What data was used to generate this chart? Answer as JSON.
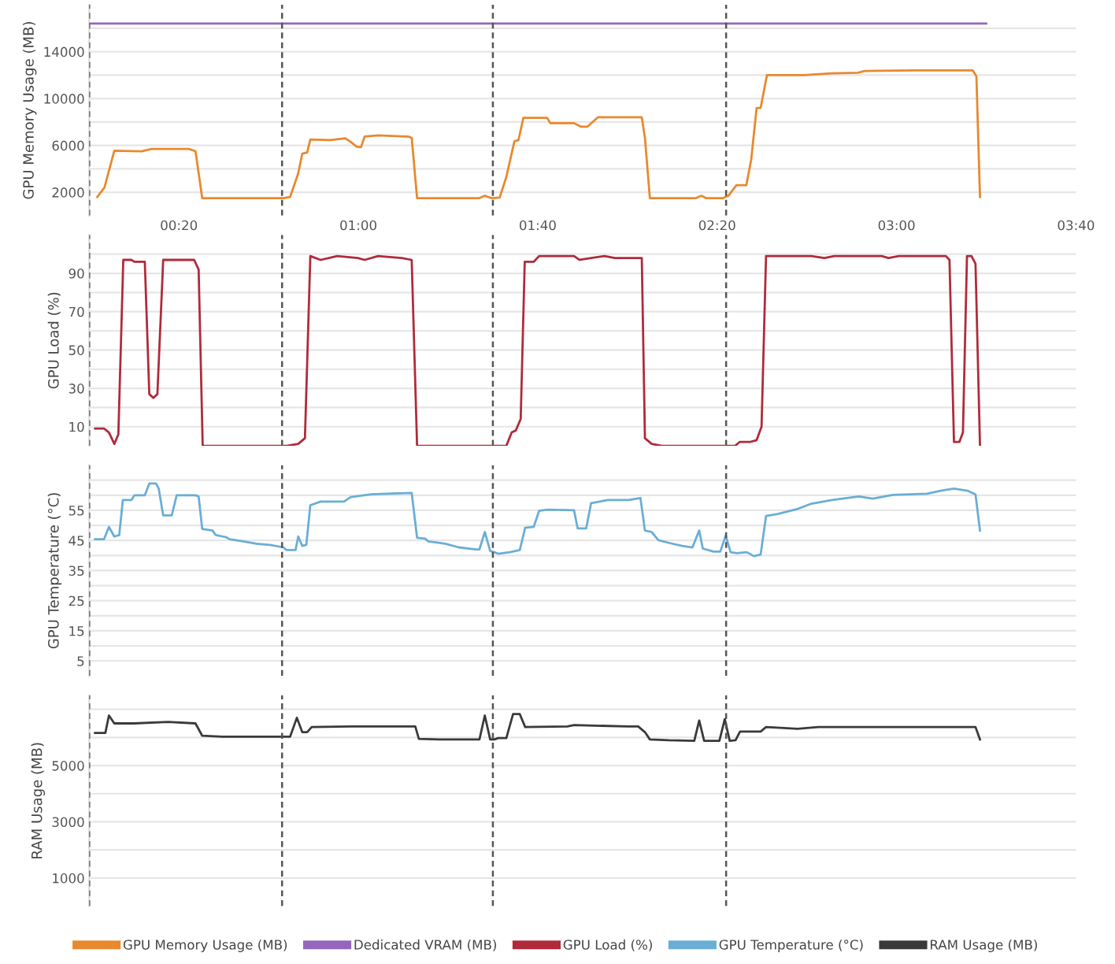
{
  "chart_data": [
    {
      "type": "line",
      "ylabel": "GPU Memory Usage (MB)",
      "xlim": [
        0,
        220
      ],
      "xticks": [
        {
          "value": 20,
          "label": "00:20"
        },
        {
          "value": 60,
          "label": "01:00"
        },
        {
          "value": 100,
          "label": "01:40"
        },
        {
          "value": 140,
          "label": "02:20"
        },
        {
          "value": 180,
          "label": "03:00"
        },
        {
          "value": 220,
          "label": "03:40"
        }
      ],
      "ylim": [
        0,
        18000
      ],
      "yticks": [
        {
          "value": 2000,
          "label": "2000"
        },
        {
          "value": 4000,
          "label": null
        },
        {
          "value": 6000,
          "label": "6000"
        },
        {
          "value": 8000,
          "label": null
        },
        {
          "value": 10000,
          "label": "10000"
        },
        {
          "value": 12000,
          "label": null
        },
        {
          "value": 14000,
          "label": "14000"
        },
        {
          "value": 16000,
          "label": null
        }
      ],
      "grid": "y",
      "legend": "bottom",
      "ref_lines": [
        {
          "axis": "x",
          "value": 0,
          "color": "#555555",
          "line_style": "dashed"
        },
        {
          "axis": "x",
          "value": 43,
          "color": "#555555",
          "line_style": "dashed"
        },
        {
          "axis": "x",
          "value": 90,
          "color": "#555555",
          "line_style": "dashed"
        },
        {
          "axis": "x",
          "value": 142,
          "color": "#555555",
          "line_style": "dashed"
        }
      ],
      "series": [
        {
          "name": "GPU Memory Usage (MB)",
          "color": "#e8892e",
          "x": [
            1.8,
            3.4,
            5.6,
            11.7,
            13.9,
            22.2,
            23.7,
            25.2,
            43.3,
            44.8,
            46.6,
            47.5,
            48.6,
            49.3,
            53.8,
            57.1,
            58.3,
            59.6,
            60.6,
            61.4,
            64.4,
            71.2,
            71.9,
            73.1,
            87,
            88.2,
            89.7,
            91.5,
            93,
            94.8,
            95.7,
            96.8,
            102.1,
            102.8,
            108.1,
            109.6,
            111.1,
            113.4,
            123.2,
            123.9,
            125,
            135.3,
            136.5,
            137.5,
            141.3,
            142.5,
            144.3,
            146.5,
            147.6,
            148.8,
            149.7,
            151.1,
            159.4,
            165.4,
            171.4,
            172.9,
            183.5,
            197,
            197.8,
            198.6
          ],
          "values": [
            1600,
            2400,
            5550,
            5500,
            5700,
            5700,
            5500,
            1500,
            1500,
            1600,
            3600,
            5300,
            5400,
            6500,
            6450,
            6600,
            6300,
            5900,
            5850,
            6750,
            6850,
            6750,
            6650,
            1500,
            1500,
            1700,
            1500,
            1550,
            3300,
            6350,
            6450,
            8350,
            8350,
            7900,
            7900,
            7600,
            7600,
            8400,
            8400,
            6650,
            1500,
            1500,
            1700,
            1500,
            1500,
            1700,
            2600,
            2600,
            4800,
            9200,
            9200,
            12000,
            12000,
            12150,
            12200,
            12350,
            12400,
            12400,
            11900,
            1600
          ]
        },
        {
          "name": "Dedicated VRAM (MB)",
          "color": "#9467bd",
          "x": [
            0,
            200
          ],
          "values": [
            16400,
            16400
          ]
        }
      ]
    },
    {
      "type": "line",
      "ylabel": "GPU Load (%)",
      "xlim": [
        0,
        220
      ],
      "ylim": [
        0,
        110
      ],
      "yticks": [
        {
          "value": 10,
          "label": "10"
        },
        {
          "value": 20,
          "label": null
        },
        {
          "value": 30,
          "label": "30"
        },
        {
          "value": 40,
          "label": null
        },
        {
          "value": 50,
          "label": "50"
        },
        {
          "value": 60,
          "label": null
        },
        {
          "value": 70,
          "label": "70"
        },
        {
          "value": 80,
          "label": null
        },
        {
          "value": 90,
          "label": "90"
        },
        {
          "value": 100,
          "label": null
        }
      ],
      "grid": "y",
      "tick_labels": "y",
      "legend": "bottom",
      "ref_lines": [
        {
          "axis": "x",
          "value": 0,
          "color": "#555555",
          "line_style": "dashed"
        },
        {
          "axis": "x",
          "value": 43,
          "color": "#555555",
          "line_style": "dashed"
        },
        {
          "axis": "x",
          "value": 90,
          "color": "#555555",
          "line_style": "dashed"
        },
        {
          "axis": "x",
          "value": 142,
          "color": "#555555",
          "line_style": "dashed"
        }
      ],
      "series": [
        {
          "name": "GPU Load (%)",
          "color": "#b02a3a",
          "x": [
            1.3,
            3.3,
            4.4,
            5.6,
            6.5,
            7.6,
            9.4,
            10.1,
            12.4,
            13.4,
            14.3,
            15.2,
            16.5,
            23.4,
            24.4,
            25.3,
            43.3,
            44,
            46.6,
            48.1,
            49.3,
            51.6,
            55.3,
            59.9,
            61.4,
            64.4,
            69.7,
            71.9,
            73.1,
            90,
            91.2,
            93,
            94.2,
            95.1,
            96.2,
            97.1,
            99.1,
            100.3,
            108.1,
            109.3,
            111.9,
            114.9,
            117.2,
            123.2,
            123.9,
            125.4,
            127.7,
            142.8,
            144,
            145,
            147.3,
            148.8,
            149.9,
            150.9,
            161,
            163.9,
            166.1,
            176.7,
            178.2,
            180.5,
            191,
            191.8,
            192.8,
            194,
            194.8,
            195.7,
            196.7,
            197.6,
            198.6
          ],
          "values": [
            9,
            9,
            7,
            1,
            6,
            97,
            97,
            96,
            96,
            27,
            25,
            27,
            97,
            97,
            92,
            0,
            0,
            0,
            1,
            4,
            99,
            97,
            99,
            98,
            97,
            99,
            98,
            97,
            0,
            0,
            0,
            0,
            7,
            8,
            14,
            96,
            96,
            99,
            99,
            97,
            98,
            99,
            98,
            98,
            4,
            1,
            0,
            0,
            0,
            2,
            2,
            3,
            10,
            99,
            99,
            98,
            99,
            99,
            98,
            99,
            99,
            97,
            2,
            2,
            7,
            99,
            99,
            95,
            0
          ]
        }
      ]
    },
    {
      "type": "line",
      "ylabel": "GPU Temperature (°C)",
      "xlim": [
        0,
        220
      ],
      "ylim": [
        0,
        70
      ],
      "yticks": [
        {
          "value": 5,
          "label": "5"
        },
        {
          "value": 10,
          "label": null
        },
        {
          "value": 15,
          "label": "15"
        },
        {
          "value": 20,
          "label": null
        },
        {
          "value": 25,
          "label": "25"
        },
        {
          "value": 30,
          "label": null
        },
        {
          "value": 35,
          "label": "35"
        },
        {
          "value": 40,
          "label": null
        },
        {
          "value": 45,
          "label": "45"
        },
        {
          "value": 50,
          "label": null
        },
        {
          "value": 55,
          "label": "55"
        },
        {
          "value": 60,
          "label": null
        },
        {
          "value": 65,
          "label": null
        }
      ],
      "grid": "y",
      "tick_labels": "y",
      "legend": "bottom",
      "ref_lines": [
        {
          "axis": "x",
          "value": 0,
          "color": "#555555",
          "line_style": "dashed"
        },
        {
          "axis": "x",
          "value": 43,
          "color": "#555555",
          "line_style": "dashed"
        },
        {
          "axis": "x",
          "value": 90,
          "color": "#555555",
          "line_style": "dashed"
        },
        {
          "axis": "x",
          "value": 142,
          "color": "#555555",
          "line_style": "dashed"
        }
      ],
      "series": [
        {
          "name": "GPU Temperature (°C)",
          "color": "#6aaed6",
          "x": [
            1.3,
            3.3,
            4.4,
            5.6,
            6.7,
            7.5,
            9.4,
            10.1,
            12.4,
            13.4,
            14.9,
            15.5,
            16.5,
            18.4,
            19.5,
            23.7,
            24.4,
            25.2,
            27.5,
            28.2,
            30.5,
            31.3,
            34.3,
            37.3,
            40.3,
            43.3,
            44,
            46,
            46.6,
            47.5,
            48.4,
            49.3,
            51.6,
            56.8,
            58.3,
            62.9,
            71.9,
            73.1,
            74.9,
            75.6,
            79.4,
            82.4,
            86.2,
            87,
            88.2,
            89.4,
            90.3,
            91.2,
            93.8,
            96,
            97.2,
            99.1,
            100.3,
            102.1,
            108.1,
            108.9,
            110.8,
            111.9,
            115.6,
            120.2,
            122.9,
            123.9,
            125.4,
            126.9,
            129.2,
            132.2,
            134.5,
            136,
            136.8,
            139.2,
            140.7,
            141.9,
            143,
            144.4,
            146.6,
            148.2,
            149.7,
            150.9,
            153.5,
            158,
            161,
            165.6,
            171.6,
            174.7,
            179.2,
            186.8,
            189.8,
            192.8,
            195.8,
            197.6,
            198.6
          ],
          "values": [
            45.4,
            45.4,
            49.5,
            46.3,
            46.8,
            58.4,
            58.4,
            60,
            60,
            63.9,
            63.9,
            62.2,
            53.3,
            53.3,
            60,
            60,
            59.6,
            48.8,
            48.3,
            46.8,
            46.1,
            45.4,
            44.7,
            43.9,
            43.5,
            42.7,
            41.8,
            41.8,
            46.3,
            43.2,
            43.5,
            56.7,
            57.9,
            57.9,
            59.4,
            60.3,
            60.8,
            45.9,
            45.6,
            44.7,
            43.9,
            42.7,
            42,
            42,
            47.8,
            41.5,
            41.1,
            40.6,
            41.1,
            41.8,
            49.2,
            49.5,
            54.8,
            55.2,
            55,
            49,
            49,
            57.4,
            58.4,
            58.4,
            59.1,
            48.3,
            47.8,
            45.1,
            44.2,
            43.2,
            42.7,
            48.3,
            42.3,
            41.3,
            41.3,
            46.6,
            41.1,
            40.8,
            41.1,
            39.8,
            40.3,
            53.1,
            53.8,
            55.5,
            57.2,
            58.4,
            59.6,
            58.9,
            60.1,
            60.5,
            61.5,
            62.2,
            61.5,
            60.3,
            48.3
          ]
        }
      ]
    },
    {
      "type": "line",
      "ylabel": "RAM Usage (MB)",
      "xlim": [
        0,
        220
      ],
      "ylim": [
        0,
        7500
      ],
      "yticks": [
        {
          "value": 1000,
          "label": "1000"
        },
        {
          "value": 2000,
          "label": null
        },
        {
          "value": 3000,
          "label": "3000"
        },
        {
          "value": 4000,
          "label": null
        },
        {
          "value": 5000,
          "label": "5000"
        },
        {
          "value": 6000,
          "label": null
        },
        {
          "value": 7000,
          "label": null
        }
      ],
      "grid": "y",
      "tick_labels": "y",
      "legend": "bottom",
      "ref_lines": [
        {
          "axis": "x",
          "value": 0,
          "color": "#555555",
          "line_style": "dashed"
        },
        {
          "axis": "x",
          "value": 43,
          "color": "#555555",
          "line_style": "dashed"
        },
        {
          "axis": "x",
          "value": 90,
          "color": "#555555",
          "line_style": "dashed"
        },
        {
          "axis": "x",
          "value": 142,
          "color": "#555555",
          "line_style": "dashed"
        }
      ],
      "series": [
        {
          "name": "RAM Usage (MB)",
          "color": "#3a3a3a",
          "x": [
            1.3,
            3.6,
            4.4,
            5.6,
            10,
            17.6,
            23.7,
            25.2,
            29.7,
            43.3,
            44.8,
            46.3,
            47.5,
            48.6,
            49.6,
            58.3,
            72.7,
            73.5,
            78,
            87,
            88.2,
            89.4,
            90.3,
            91.2,
            93,
            94.5,
            96,
            97.2,
            106.6,
            108.1,
            120.2,
            122.4,
            123.9,
            125,
            129.2,
            134.9,
            136,
            137.1,
            140.5,
            141.7,
            142.8,
            144.1,
            145.1,
            149.7,
            150.9,
            158,
            162.5,
            192.8,
            197.6,
            198.6
          ],
          "values": [
            6160,
            6160,
            6780,
            6500,
            6500,
            6550,
            6500,
            6060,
            6030,
            6030,
            6030,
            6700,
            6190,
            6190,
            6370,
            6390,
            6390,
            5950,
            5930,
            5930,
            6780,
            5930,
            5930,
            5980,
            5980,
            6830,
            6830,
            6370,
            6390,
            6440,
            6390,
            6390,
            6190,
            5930,
            5900,
            5880,
            6600,
            5880,
            5880,
            6650,
            5880,
            5900,
            6210,
            6210,
            6370,
            6310,
            6370,
            6370,
            6370,
            5930
          ]
        }
      ]
    }
  ]
}
